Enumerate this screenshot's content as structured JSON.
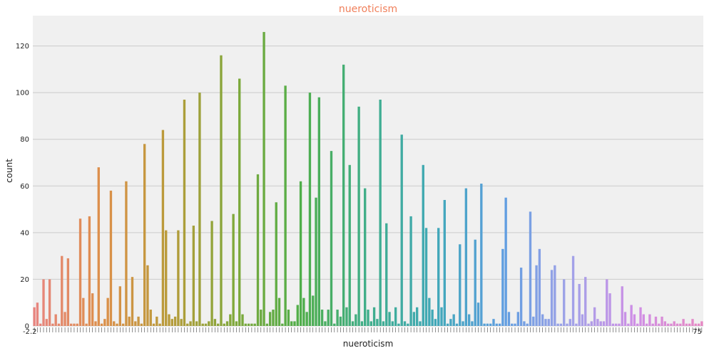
{
  "chart_data": {
    "type": "bar",
    "title": "nueroticism",
    "xlabel": "nueroticism",
    "ylabel": "count",
    "ylim": [
      0,
      133
    ],
    "yticks": [
      0,
      20,
      40,
      60,
      80,
      100,
      120
    ],
    "grid": true,
    "legend": "none",
    "x_tick_labels_overlapping": true,
    "first_x_tick_label": "-2.2",
    "last_x_tick_label": "75",
    "values": [
      8,
      10,
      1,
      20,
      3,
      20,
      1,
      5,
      1,
      30,
      6,
      29,
      1,
      1,
      1,
      46,
      12,
      1,
      47,
      14,
      2,
      68,
      1,
      3,
      12,
      58,
      2,
      1,
      17,
      1,
      62,
      4,
      21,
      2,
      4,
      1,
      78,
      26,
      7,
      1,
      4,
      1,
      84,
      41,
      5,
      3,
      4,
      41,
      3,
      97,
      1,
      2,
      43,
      2,
      100,
      1,
      1,
      2,
      45,
      3,
      1,
      116,
      1,
      2,
      5,
      48,
      2,
      106,
      5,
      1,
      1,
      1,
      1,
      65,
      7,
      126,
      1,
      6,
      7,
      53,
      12,
      1,
      103,
      7,
      2,
      2,
      9,
      62,
      12,
      6,
      100,
      13,
      55,
      98,
      7,
      2,
      7,
      75,
      1,
      7,
      4,
      112,
      8,
      69,
      2,
      5,
      94,
      2,
      59,
      7,
      2,
      8,
      3,
      97,
      2,
      44,
      6,
      2,
      8,
      1,
      82,
      2,
      1,
      47,
      6,
      8,
      2,
      69,
      42,
      12,
      7,
      3,
      42,
      8,
      54,
      1,
      3,
      5,
      1,
      35,
      2,
      59,
      5,
      2,
      37,
      10,
      61,
      1,
      1,
      1,
      3,
      1,
      1,
      33,
      55,
      6,
      1,
      1,
      6,
      25,
      2,
      1,
      49,
      4,
      26,
      33,
      5,
      3,
      3,
      24,
      26,
      1,
      1,
      20,
      1,
      3,
      30,
      1,
      18,
      5,
      21,
      1,
      2,
      8,
      3,
      2,
      2,
      20,
      14,
      1,
      1,
      1,
      17,
      6,
      1,
      9,
      5,
      1,
      8,
      5,
      1,
      5,
      1,
      4,
      1,
      4,
      2,
      1,
      1,
      2,
      1,
      1,
      3,
      1,
      1,
      3,
      1,
      1,
      2
    ],
    "palette_start": "#e8847f",
    "palette_stops": [
      "#e8847f",
      "#dd8f4a",
      "#b99b3a",
      "#7fa83a",
      "#4fae4a",
      "#3fae8b",
      "#40a8b8",
      "#5e9ee0",
      "#a0a2e8",
      "#cf8ee6",
      "#e688c4"
    ]
  },
  "colors": {
    "background": "#f0f0f0",
    "grid": "#cbcbcb",
    "title": "#f07f5a"
  }
}
